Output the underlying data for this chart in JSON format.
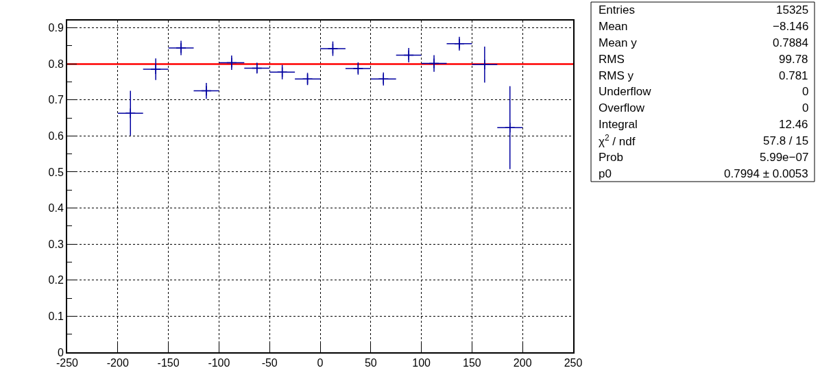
{
  "chart_data": {
    "type": "scatter",
    "x": [
      -187.5,
      -162.5,
      -137.5,
      -112.5,
      -87.5,
      -62.5,
      -37.5,
      -12.5,
      12.5,
      37.5,
      62.5,
      87.5,
      112.5,
      137.5,
      162.5,
      187.5
    ],
    "values": [
      0.663,
      0.785,
      0.844,
      0.725,
      0.803,
      0.788,
      0.777,
      0.758,
      0.842,
      0.787,
      0.758,
      0.824,
      0.801,
      0.856,
      0.798,
      0.623
    ],
    "errors": [
      0.062,
      0.03,
      0.02,
      0.022,
      0.02,
      0.015,
      0.02,
      0.017,
      0.02,
      0.017,
      0.018,
      0.02,
      0.023,
      0.019,
      0.05,
      0.115
    ],
    "xerrors": [
      12.5,
      12.5,
      12.5,
      12.5,
      12.5,
      12.5,
      12.5,
      12.5,
      12.5,
      12.5,
      12.5,
      12.5,
      12.5,
      12.5,
      12.5,
      12.5
    ],
    "color": "#0000a0",
    "marker": "cross",
    "series": [
      {
        "type": "line",
        "x": [
          -250,
          250
        ],
        "values": [
          0.7994,
          0.7994
        ],
        "color": "#ff0000",
        "marker": "none"
      }
    ],
    "xlim": [
      -250,
      250
    ],
    "xticks": [
      -250,
      -200,
      -150,
      -100,
      -50,
      0,
      50,
      100,
      150,
      200,
      250
    ],
    "ylim": [
      0,
      0.92
    ],
    "yticks": [
      0,
      0.1,
      0.2,
      0.3,
      0.4,
      0.5,
      0.6,
      0.7,
      0.8,
      0.9
    ],
    "grid": true,
    "legend": false,
    "annotations": [
      "Entries",
      "15325",
      "Mean",
      "−8.146",
      "Mean y",
      "0.7884",
      "RMS",
      "99.78",
      "RMS y",
      "0.781",
      "Underflow",
      "0",
      "Overflow",
      "0",
      "Integral",
      "12.46",
      "χ$^{2}$ / ndf",
      "57.8 / 15",
      "Prob",
      "5.99e−07",
      "p0",
      "0.7994 ± 0.0053"
    ]
  }
}
